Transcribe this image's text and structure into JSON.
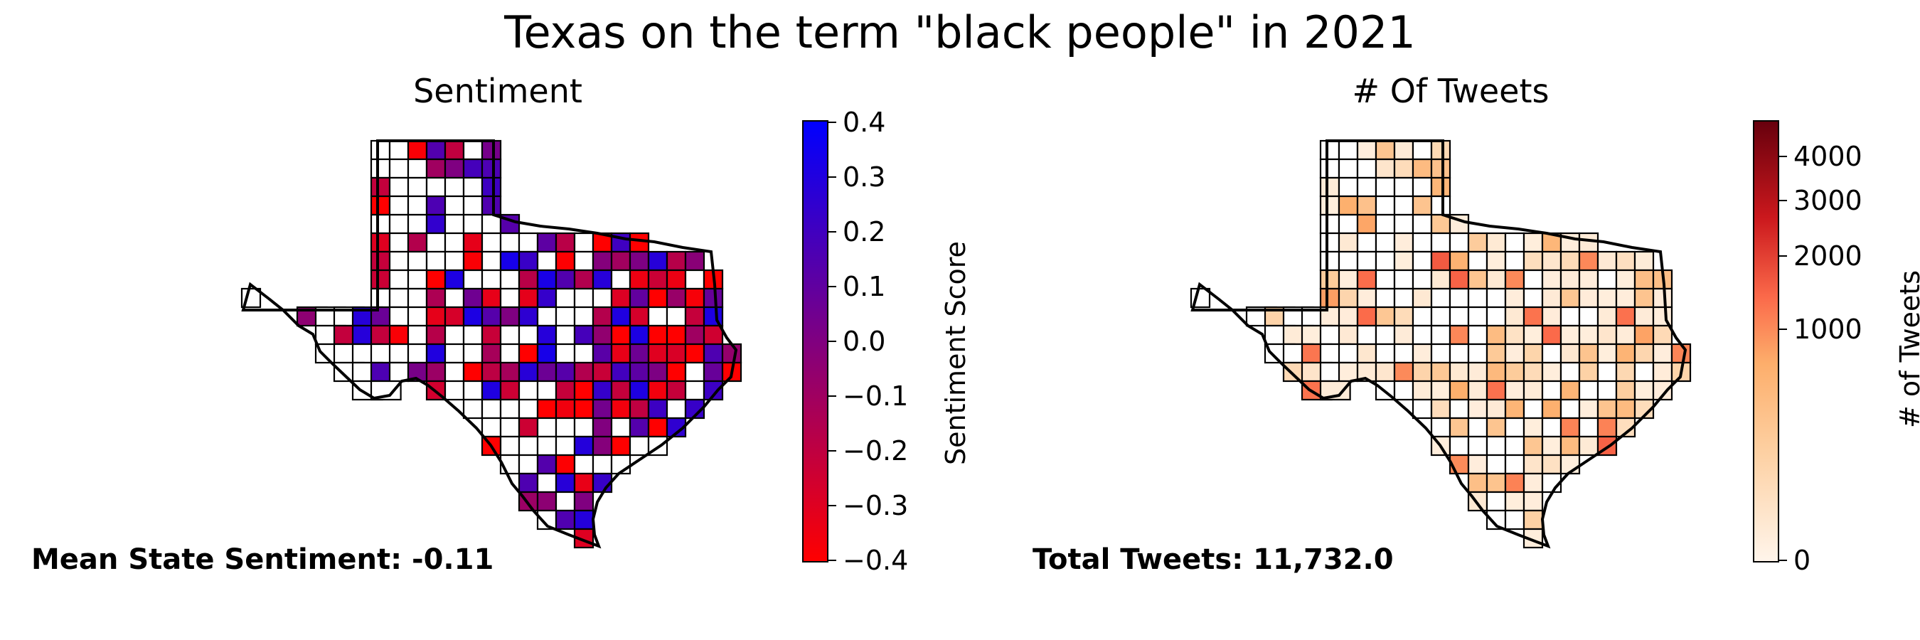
{
  "title": "Texas on the term \"black people\" in 2021",
  "colors": {
    "sentiment_low": "#ff0000",
    "sentiment_mid": "#800080",
    "sentiment_high": "#0000ff",
    "tweets_low": "#fff5eb",
    "tweets_mid": "#fb6a4a",
    "tweets_high": "#67000d",
    "county_border": "#000000",
    "no_data": "#ffffff"
  },
  "sentiment_panel": {
    "title": "Sentiment",
    "colorbar": {
      "label": "Sentiment Score",
      "scale": "linear",
      "range": [
        -0.4,
        0.4
      ],
      "ticks": [
        "0.4",
        "0.3",
        "0.2",
        "0.1",
        "0.0",
        "−0.1",
        "−0.2",
        "−0.3",
        "−0.4"
      ]
    },
    "footer": "Mean State Sentiment: -0.11"
  },
  "tweets_panel": {
    "title": "# Of Tweets",
    "colorbar": {
      "label": "# of Tweets",
      "scale": "nonlinear",
      "range": [
        0,
        4700
      ],
      "ticks": [
        "4000",
        "3000",
        "2000",
        "1000",
        "0"
      ]
    },
    "footer": "Total Tweets: 11,732.0"
  }
}
